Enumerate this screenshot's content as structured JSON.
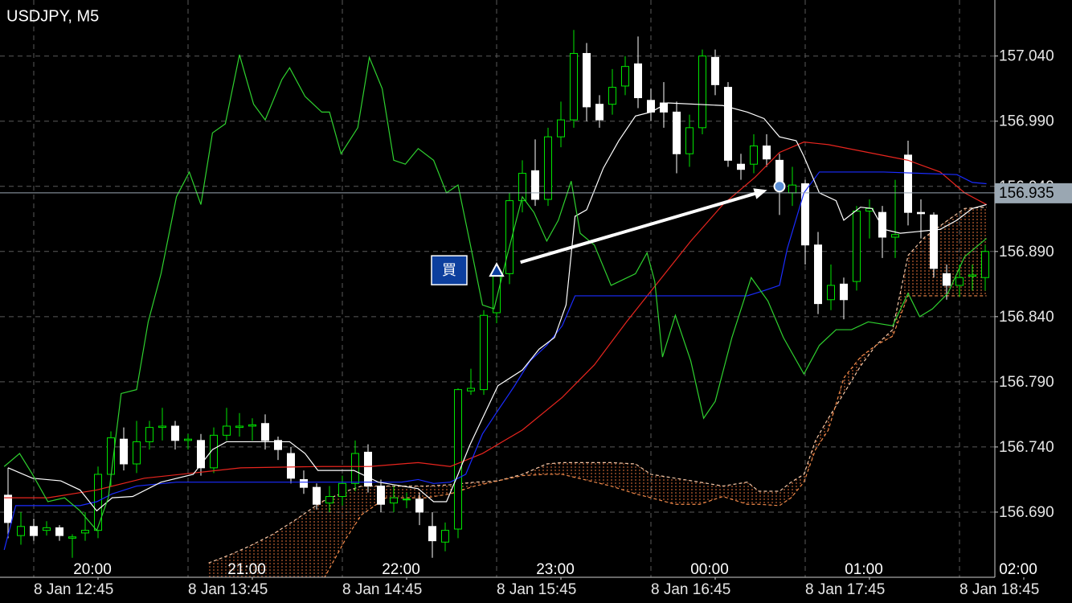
{
  "chart_data": {
    "type": "candlestick",
    "title": "USDJPY, M5",
    "ylim": [
      156.64,
      157.083
    ],
    "yticks": [
      {
        "value": 156.69,
        "label": "156.690"
      },
      {
        "value": 156.74,
        "label": "156.740"
      },
      {
        "value": 156.79,
        "label": "156.790"
      },
      {
        "value": 156.84,
        "label": "156.840"
      },
      {
        "value": 156.89,
        "label": "156.890"
      },
      {
        "value": 156.94,
        "label": "156.940"
      },
      {
        "value": 156.99,
        "label": "156.990"
      },
      {
        "value": 157.04,
        "label": "157.040"
      }
    ],
    "xlim": [
      -0.625,
      76.75
    ],
    "xticks": [
      {
        "value": 7,
        "label": "20:00"
      },
      {
        "value": 19,
        "label": "21:00"
      },
      {
        "value": 31,
        "label": "22:00"
      },
      {
        "value": 43,
        "label": "23:00"
      },
      {
        "value": 55,
        "label": "00:00"
      },
      {
        "value": 67,
        "label": "01:00"
      },
      {
        "value": 79,
        "label": "02:00"
      }
    ],
    "xticks_secondary": [
      {
        "value": 2,
        "label": "8 Jan 12:45"
      },
      {
        "value": 14,
        "label": "8 Jan 13:45"
      },
      {
        "value": 26,
        "label": "8 Jan 14:45"
      },
      {
        "value": 38,
        "label": "8 Jan 15:45"
      },
      {
        "value": 50,
        "label": "8 Jan 16:45"
      },
      {
        "value": 62,
        "label": "8 Jan 17:45"
      },
      {
        "value": 74,
        "label": "8 Jan 18:45"
      }
    ],
    "grid": true,
    "up_color": "#00e600",
    "down_color": "#ffffff",
    "open": [
      156.703,
      156.672,
      156.679,
      156.676,
      156.678,
      156.67,
      156.674,
      156.676,
      156.719,
      156.746,
      156.727,
      156.744,
      156.755,
      156.756,
      156.745,
      156.745,
      156.724,
      156.749,
      156.755,
      156.756,
      156.758,
      156.745,
      156.735,
      156.715,
      156.709,
      156.697,
      156.702,
      156.712,
      156.736,
      156.71,
      156.697,
      156.7,
      156.7,
      156.679,
      156.667,
      156.677,
      156.783,
      156.784,
      156.843,
      156.873,
      156.929,
      156.952,
      156.93,
      156.978,
      156.991,
      157.042,
      157.003,
      157.003,
      157.017,
      157.034,
      157.006,
      157.004,
      156.997,
      156.965,
      156.985,
      157.039,
      157.016,
      156.957,
      156.957,
      156.971,
      156.96,
      156.935,
      156.942,
      156.895,
      156.853,
      156.865,
      156.867,
      156.921,
      156.92,
      156.901,
      156.964,
      156.92,
      156.918,
      156.873,
      156.864,
      156.871,
      156.87
    ],
    "high": [
      156.724,
      156.69,
      156.685,
      156.683,
      156.68,
      156.673,
      156.69,
      156.725,
      156.752,
      156.755,
      156.76,
      156.76,
      156.77,
      156.76,
      156.75,
      156.75,
      156.755,
      156.77,
      156.766,
      156.762,
      156.765,
      156.748,
      156.74,
      156.722,
      156.712,
      156.71,
      156.718,
      156.745,
      156.742,
      156.715,
      156.71,
      156.705,
      156.705,
      156.69,
      156.682,
      156.785,
      156.8,
      156.845,
      156.88,
      156.935,
      156.96,
      156.976,
      156.985,
      157.005,
      157.06,
      157.05,
      157.01,
      157.03,
      157.04,
      157.055,
      157.015,
      157.02,
      157.005,
      156.995,
      157.045,
      157.045,
      157.02,
      156.965,
      156.98,
      156.98,
      156.965,
      156.955,
      156.945,
      156.905,
      156.88,
      156.87,
      156.925,
      156.93,
      156.925,
      156.945,
      156.975,
      156.93,
      156.92,
      156.88,
      156.88,
      156.88,
      156.895
    ],
    "low": [
      156.67,
      156.665,
      156.668,
      156.672,
      156.668,
      156.655,
      156.668,
      156.67,
      156.71,
      156.722,
      156.72,
      156.738,
      156.745,
      156.738,
      156.738,
      156.718,
      156.72,
      156.745,
      156.748,
      156.745,
      156.738,
      156.73,
      156.712,
      156.704,
      156.692,
      156.69,
      156.695,
      156.706,
      156.705,
      156.69,
      156.69,
      156.693,
      156.68,
      156.655,
      156.66,
      156.67,
      156.78,
      156.78,
      156.835,
      156.865,
      156.92,
      156.925,
      156.925,
      156.97,
      156.985,
      156.99,
      156.985,
      156.995,
      157.01,
      157.0,
      156.99,
      156.985,
      156.95,
      156.955,
      156.98,
      157.01,
      156.955,
      156.945,
      156.95,
      156.955,
      156.918,
      156.925,
      156.88,
      156.842,
      156.845,
      156.838,
      156.86,
      156.9,
      156.885,
      156.885,
      156.91,
      156.9,
      156.87,
      156.853,
      156.855,
      156.86,
      156.86
    ],
    "close": [
      156.682,
      156.679,
      156.672,
      156.678,
      156.672,
      156.671,
      156.676,
      156.719,
      156.747,
      156.727,
      156.744,
      156.755,
      156.756,
      156.745,
      156.746,
      156.724,
      156.749,
      156.756,
      156.756,
      156.757,
      156.745,
      156.738,
      156.716,
      156.709,
      156.696,
      156.702,
      156.712,
      156.735,
      156.71,
      156.696,
      156.701,
      156.7,
      156.69,
      156.668,
      156.676,
      156.784,
      156.785,
      156.841,
      156.873,
      156.929,
      156.95,
      156.93,
      156.978,
      156.991,
      157.042,
      157.001,
      156.991,
      157.016,
      157.032,
      157.008,
      156.997,
      156.997,
      156.965,
      156.985,
      157.04,
      157.018,
      156.96,
      156.953,
      156.971,
      156.961,
      156.944,
      156.941,
      156.895,
      156.85,
      156.864,
      156.853,
      156.921,
      156.923,
      156.901,
      156.903,
      156.92,
      156.919,
      156.877,
      156.864,
      156.87,
      156.872,
      156.89
    ],
    "cloud": {
      "fill_color": "#e0703a",
      "x": [
        15.6,
        17.2,
        18.8,
        20.6,
        22.5,
        24.4,
        26.3,
        27.5,
        29.4,
        32.5,
        34.4,
        36.3,
        38.1,
        40,
        41.9,
        43.1,
        46.9,
        48.8,
        50,
        51.9,
        53.8,
        55.6,
        57.5,
        58.4,
        60,
        60.9,
        61.9,
        62.8,
        63.8,
        65,
        66.3,
        67.5,
        68.8,
        70,
        71.3,
        73.1,
        74.4,
        76.1
      ],
      "span_a": {
        "color": "#f5c8a8",
        "values": [
          156.651,
          156.657,
          156.664,
          156.673,
          156.685,
          156.698,
          156.706,
          156.71,
          156.71,
          156.71,
          156.711,
          156.713,
          156.714,
          156.719,
          156.727,
          156.728,
          156.728,
          156.727,
          156.719,
          156.716,
          156.713,
          156.71,
          156.713,
          156.706,
          156.706,
          156.713,
          156.719,
          156.745,
          156.762,
          156.781,
          156.802,
          156.818,
          156.83,
          156.887,
          156.901,
          156.914,
          156.923,
          156.924
        ]
      },
      "span_b": {
        "color": "#f08a4a",
        "values": [
          156.636,
          156.636,
          156.636,
          156.636,
          156.636,
          156.636,
          156.67,
          156.688,
          156.701,
          156.701,
          156.704,
          156.71,
          156.714,
          156.718,
          156.719,
          156.719,
          156.71,
          156.704,
          156.701,
          156.696,
          156.696,
          156.702,
          156.696,
          156.696,
          156.695,
          156.701,
          156.713,
          156.738,
          156.753,
          156.793,
          156.809,
          156.818,
          156.825,
          156.856,
          156.856,
          156.856,
          156.856,
          156.856
        ]
      }
    },
    "lines": [
      {
        "color": "#e8251e",
        "x": [
          -0.3,
          3.1,
          6.9,
          10.6,
          14.4,
          18.1,
          24.4,
          28.1,
          31.9,
          34.4,
          36.9,
          40,
          43.1,
          45.6,
          48.1,
          50.6,
          53.1,
          55.6,
          58.1,
          60,
          61.9,
          63.8,
          66.9,
          70,
          72.5,
          74.4,
          76.1
        ],
        "values": [
          156.701,
          156.701,
          156.707,
          156.716,
          156.72,
          156.724,
          156.725,
          156.725,
          156.728,
          156.725,
          156.735,
          156.753,
          156.778,
          156.803,
          156.836,
          156.867,
          156.898,
          156.926,
          156.947,
          156.966,
          156.974,
          156.972,
          156.966,
          156.96,
          156.951,
          156.935,
          156.926
        ]
      },
      {
        "color": "#1a2cff",
        "x": [
          -0.3,
          0.6,
          5.6,
          6.9,
          8.1,
          10,
          13.1,
          30.6,
          31.9,
          33.1,
          34.4,
          35.6,
          36.9,
          38.1,
          39.4,
          40.6,
          41.9,
          43.1,
          44.1,
          57.5,
          58.8,
          60,
          60.6,
          61.9,
          63.1,
          68.1,
          73.8,
          75,
          76.1
        ],
        "values": [
          156.661,
          156.695,
          156.695,
          156.698,
          156.704,
          156.71,
          156.713,
          156.713,
          156.715,
          156.712,
          156.713,
          156.719,
          156.75,
          156.768,
          156.787,
          156.806,
          156.818,
          156.833,
          156.856,
          156.856,
          156.86,
          156.864,
          156.892,
          156.935,
          156.951,
          156.951,
          156.949,
          156.943,
          156.942
        ]
      },
      {
        "color": "#ffffff",
        "x": [
          0,
          1.9,
          4.1,
          5.6,
          6.9,
          8.1,
          9.7,
          11.9,
          14.4,
          15.9,
          17,
          21.9,
          23.1,
          24.1,
          26.9,
          28.8,
          31.9,
          33.1,
          34.1,
          35,
          35.9,
          36.9,
          38.1,
          40,
          41.3,
          42.5,
          43.4,
          44.1,
          45,
          46.3,
          47.5,
          48.8,
          50,
          51.3,
          55.6,
          57.5,
          58.8,
          60,
          61.3,
          61.9,
          63.1,
          64.4,
          65,
          66.3,
          67.2,
          68.1,
          69.4,
          72.5,
          73.8,
          75,
          76.1
        ],
        "values": [
          156.724,
          156.716,
          156.714,
          156.707,
          156.691,
          156.701,
          156.702,
          156.713,
          156.719,
          156.738,
          156.744,
          156.744,
          156.735,
          156.722,
          156.722,
          156.713,
          156.708,
          156.698,
          156.698,
          156.719,
          156.741,
          156.762,
          156.787,
          156.799,
          156.815,
          156.824,
          156.849,
          156.917,
          156.922,
          156.954,
          156.975,
          156.994,
          156.997,
          157.004,
          157.002,
          156.997,
          156.992,
          156.978,
          156.975,
          156.963,
          156.935,
          156.929,
          156.914,
          156.924,
          156.923,
          156.907,
          156.904,
          156.907,
          156.914,
          156.923,
          156.926
        ]
      },
      {
        "color": "#2fd12f",
        "x": [
          -0.3,
          0.9,
          1.9,
          3.1,
          4.4,
          5.6,
          6.9,
          7.8,
          8.8,
          10,
          10.9,
          11.9,
          13.1,
          14.1,
          15,
          15.9,
          16.9,
          18,
          19.1,
          20,
          21.3,
          21.9,
          23.1,
          24.4,
          25,
          25.9,
          27.2,
          28.1,
          29.1,
          30,
          30.9,
          31.9,
          33.1,
          34.1,
          35,
          35.9,
          36.9,
          37.8,
          38.8,
          40,
          40.9,
          41.9,
          42.8,
          43.8,
          44.5,
          45.6,
          46.9,
          48.8,
          49.7,
          50.3,
          50.9,
          51.9,
          53.1,
          54.1,
          55,
          56.3,
          57.8,
          59.1,
          60.3,
          61.9,
          63.1,
          64.4,
          65.6,
          66.9,
          68.8,
          70,
          70.9,
          71.9,
          73.1,
          74.4,
          76.1
        ],
        "values": [
          156.725,
          156.735,
          156.719,
          156.698,
          156.701,
          156.691,
          156.676,
          156.701,
          156.781,
          156.784,
          156.836,
          156.873,
          156.932,
          156.951,
          156.926,
          156.981,
          156.988,
          157.041,
          157.003,
          156.991,
          157.022,
          157.031,
          157.009,
          156.997,
          156.997,
          156.965,
          156.985,
          157.039,
          157.015,
          156.96,
          156.957,
          156.969,
          156.96,
          156.935,
          156.941,
          156.898,
          156.849,
          156.846,
          156.886,
          156.932,
          156.92,
          156.898,
          156.914,
          156.944,
          156.904,
          156.895,
          156.864,
          156.873,
          156.889,
          156.867,
          156.809,
          156.841,
          156.806,
          156.762,
          156.775,
          156.824,
          156.87,
          156.852,
          156.824,
          156.796,
          156.818,
          156.83,
          156.83,
          156.836,
          156.833,
          156.858,
          156.84,
          156.846,
          156.858,
          156.886,
          156.9
        ]
      }
    ],
    "current_price": {
      "value": 156.935,
      "label": "156.935",
      "color": "#9aa7b2"
    },
    "trade": {
      "label": "買",
      "color": "#0d3f9e",
      "entry": {
        "x": 38,
        "price": 156.875
      },
      "exit": {
        "x": 60,
        "price": 156.94
      }
    }
  }
}
